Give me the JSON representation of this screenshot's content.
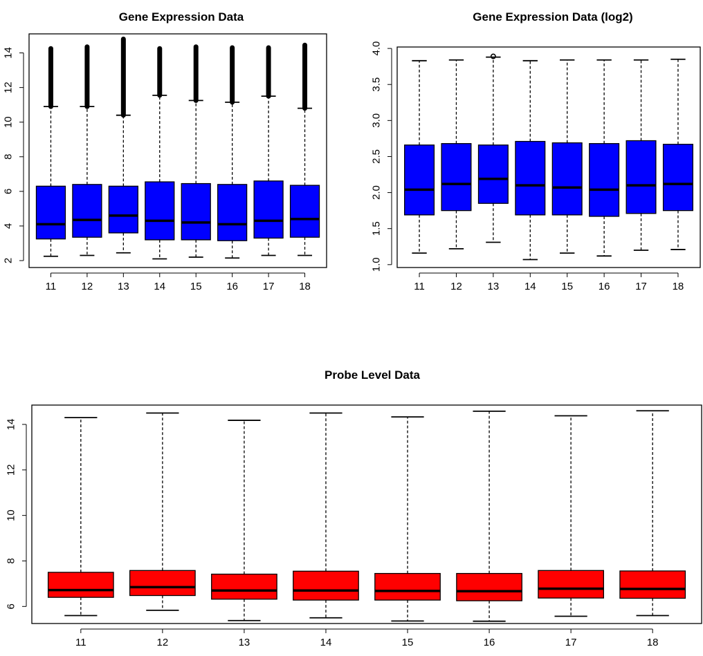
{
  "chart_data": [
    {
      "id": "gene",
      "type": "box",
      "title": "Gene Expression Data",
      "categories": [
        "11",
        "12",
        "13",
        "14",
        "15",
        "16",
        "17",
        "18"
      ],
      "ylim": [
        1.6,
        15.1
      ],
      "yticks": [
        2,
        4,
        6,
        8,
        10,
        12,
        14
      ],
      "ytick_labels": [
        "2",
        "4",
        "6",
        "8",
        "10",
        "12",
        "14"
      ],
      "box_color": "#0000ff",
      "boxes": [
        {
          "whisker_low": 2.25,
          "q1": 3.25,
          "median": 4.1,
          "q3": 6.3,
          "whisker_high": 10.9,
          "outliers_from": 10.9,
          "outliers_to": 14.25
        },
        {
          "whisker_low": 2.3,
          "q1": 3.35,
          "median": 4.35,
          "q3": 6.4,
          "whisker_high": 10.9,
          "outliers_from": 10.9,
          "outliers_to": 14.35
        },
        {
          "whisker_low": 2.45,
          "q1": 3.6,
          "median": 4.6,
          "q3": 6.3,
          "whisker_high": 10.4,
          "outliers_from": 10.4,
          "outliers_to": 14.8
        },
        {
          "whisker_low": 2.1,
          "q1": 3.2,
          "median": 4.3,
          "q3": 6.55,
          "whisker_high": 11.55,
          "outliers_from": 11.55,
          "outliers_to": 14.25
        },
        {
          "whisker_low": 2.2,
          "q1": 3.2,
          "median": 4.2,
          "q3": 6.45,
          "whisker_high": 11.25,
          "outliers_from": 11.25,
          "outliers_to": 14.35
        },
        {
          "whisker_low": 2.15,
          "q1": 3.15,
          "median": 4.1,
          "q3": 6.4,
          "whisker_high": 11.15,
          "outliers_from": 11.15,
          "outliers_to": 14.3
        },
        {
          "whisker_low": 2.3,
          "q1": 3.3,
          "median": 4.3,
          "q3": 6.6,
          "whisker_high": 11.5,
          "outliers_from": 11.5,
          "outliers_to": 14.3
        },
        {
          "whisker_low": 2.3,
          "q1": 3.35,
          "median": 4.4,
          "q3": 6.35,
          "whisker_high": 10.8,
          "outliers_from": 10.8,
          "outliers_to": 14.45
        }
      ]
    },
    {
      "id": "log2",
      "type": "box",
      "title": "Gene Expression Data (log2)",
      "categories": [
        "11",
        "12",
        "13",
        "14",
        "15",
        "16",
        "17",
        "18"
      ],
      "ylim": [
        0.96,
        4.02
      ],
      "yticks": [
        1.0,
        1.5,
        2.0,
        2.5,
        3.0,
        3.5,
        4.0
      ],
      "ytick_labels": [
        "1.0",
        "1.5",
        "2.0",
        "2.5",
        "3.0",
        "3.5",
        "4.0"
      ],
      "box_color": "#0000ff",
      "boxes": [
        {
          "whisker_low": 1.16,
          "q1": 1.69,
          "median": 2.04,
          "q3": 2.66,
          "whisker_high": 3.83
        },
        {
          "whisker_low": 1.22,
          "q1": 1.75,
          "median": 2.12,
          "q3": 2.68,
          "whisker_high": 3.84
        },
        {
          "whisker_low": 1.31,
          "q1": 1.85,
          "median": 2.19,
          "q3": 2.66,
          "whisker_high": 3.88,
          "outlier": 3.89
        },
        {
          "whisker_low": 1.07,
          "q1": 1.69,
          "median": 2.1,
          "q3": 2.71,
          "whisker_high": 3.83
        },
        {
          "whisker_low": 1.16,
          "q1": 1.69,
          "median": 2.07,
          "q3": 2.69,
          "whisker_high": 3.84
        },
        {
          "whisker_low": 1.12,
          "q1": 1.67,
          "median": 2.04,
          "q3": 2.68,
          "whisker_high": 3.84
        },
        {
          "whisker_low": 1.2,
          "q1": 1.71,
          "median": 2.1,
          "q3": 2.72,
          "whisker_high": 3.84
        },
        {
          "whisker_low": 1.21,
          "q1": 1.75,
          "median": 2.12,
          "q3": 2.67,
          "whisker_high": 3.85
        }
      ]
    },
    {
      "id": "probe",
      "type": "box",
      "title": "Probe Level Data",
      "categories": [
        "11",
        "12",
        "13",
        "14",
        "15",
        "16",
        "17",
        "18"
      ],
      "ylim": [
        5.25,
        14.85
      ],
      "yticks": [
        6,
        8,
        10,
        12,
        14
      ],
      "ytick_labels": [
        "6",
        "8",
        "10",
        "12",
        "14"
      ],
      "box_color": "#ff0000",
      "boxes": [
        {
          "whisker_low": 5.6,
          "q1": 6.4,
          "median": 6.72,
          "q3": 7.5,
          "whisker_high": 14.3
        },
        {
          "whisker_low": 5.83,
          "q1": 6.48,
          "median": 6.85,
          "q3": 7.58,
          "whisker_high": 14.5
        },
        {
          "whisker_low": 5.38,
          "q1": 6.32,
          "median": 6.7,
          "q3": 7.42,
          "whisker_high": 14.18
        },
        {
          "whisker_low": 5.5,
          "q1": 6.28,
          "median": 6.7,
          "q3": 7.55,
          "whisker_high": 14.5
        },
        {
          "whisker_low": 5.36,
          "q1": 6.28,
          "median": 6.68,
          "q3": 7.45,
          "whisker_high": 14.33
        },
        {
          "whisker_low": 5.35,
          "q1": 6.25,
          "median": 6.67,
          "q3": 7.45,
          "whisker_high": 14.58
        },
        {
          "whisker_low": 5.57,
          "q1": 6.37,
          "median": 6.78,
          "q3": 7.58,
          "whisker_high": 14.38
        },
        {
          "whisker_low": 5.6,
          "q1": 6.36,
          "median": 6.77,
          "q3": 7.56,
          "whisker_high": 14.6
        }
      ]
    }
  ]
}
